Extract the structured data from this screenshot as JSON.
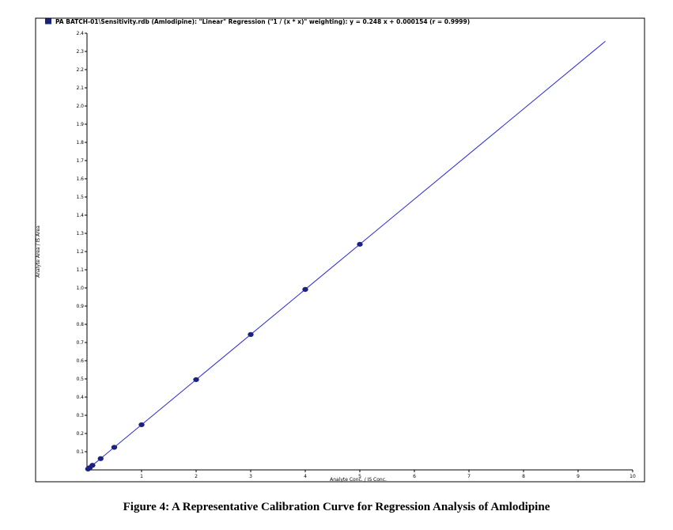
{
  "caption": "Figure 4: A Representative Calibration Curve for Regression Analysis of Amlodipine",
  "chart_data": {
    "type": "scatter",
    "legend": "PA BATCH-01\\Sensitivity.rdb (Amlodipine): \"Linear\" Regression (\"1 / (x * x)\" weighting): y = 0.248 x + 0.000154 (r = 0.9999)",
    "legend_position": "top",
    "xlabel": "Analyte Conc. / IS Conc.",
    "ylabel": "Analyte Area / IS Area",
    "xlim": [
      0,
      10
    ],
    "ylim": [
      0,
      2.4
    ],
    "x_ticks": [
      "1",
      "2",
      "3",
      "4",
      "5",
      "6",
      "7",
      "8",
      "9",
      "10"
    ],
    "y_ticks": [
      "0.1",
      "0.2",
      "0.3",
      "0.4",
      "0.5",
      "0.6",
      "0.7",
      "0.8",
      "0.9",
      "1.0",
      "1.1",
      "1.2",
      "1.3",
      "1.4",
      "1.5",
      "1.6",
      "1.7",
      "1.8",
      "1.9",
      "2.0",
      "2.1",
      "2.2",
      "2.3",
      "2.4"
    ],
    "grid": false,
    "series": [
      {
        "kind": "points",
        "x": [
          0.02,
          0.05,
          0.1,
          0.25,
          0.5,
          1.0,
          2.0,
          3.0,
          4.0,
          5.0
        ],
        "y": [
          0.005,
          0.012,
          0.025,
          0.062,
          0.124,
          0.248,
          0.496,
          0.744,
          0.992,
          1.24
        ]
      },
      {
        "kind": "regression_line",
        "x": [
          0,
          9.5
        ],
        "y": [
          0.000154,
          2.356
        ]
      }
    ],
    "colors": {
      "points": "#1a237e",
      "line": "#2b2bd6",
      "legend_marker": "#1a237e"
    }
  }
}
